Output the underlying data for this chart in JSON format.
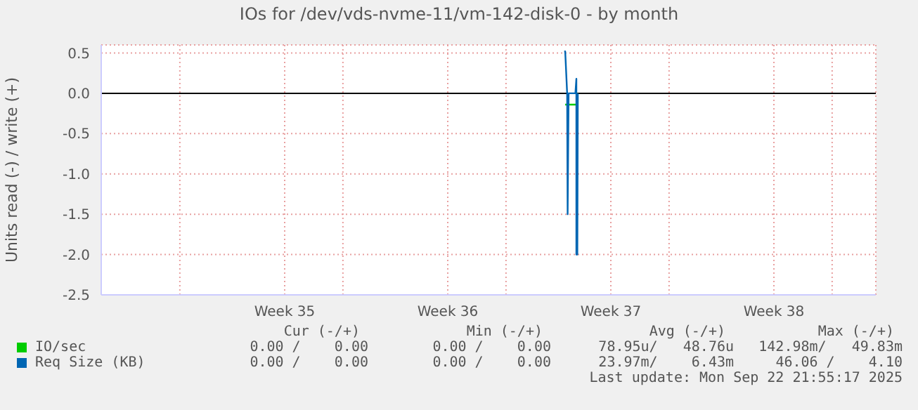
{
  "chart_data": {
    "type": "line",
    "title": "IOs for /dev/vds-nvme-11/vm-142-disk-0 - by month",
    "ylabel": "Units read (-) / write (+)",
    "xlim": [
      "2025-08-20T15:00",
      "2025-09-22T21:00"
    ],
    "xticks": [
      {
        "value": "2025-08-24",
        "label": null
      },
      {
        "value": "2025-08-28T12:00",
        "label": "Week 35"
      },
      {
        "value": "2025-08-31",
        "label": null
      },
      {
        "value": "2025-09-04T12:00",
        "label": "Week 36"
      },
      {
        "value": "2025-09-07",
        "label": null
      },
      {
        "value": "2025-09-11T12:00",
        "label": "Week 37"
      },
      {
        "value": "2025-09-14",
        "label": null
      },
      {
        "value": "2025-09-18T12:00",
        "label": "Week 38"
      },
      {
        "value": "2025-09-21",
        "label": null
      }
    ],
    "ylim": [
      -2.5,
      0.6
    ],
    "yticks": [
      {
        "value": -2.5,
        "label": "-2.5"
      },
      {
        "value": -2,
        "label": "-2.0"
      },
      {
        "value": -1.5,
        "label": "-1.5"
      },
      {
        "value": -1,
        "label": "-1.0"
      },
      {
        "value": -0.5,
        "label": "-0.5"
      },
      {
        "value": 0,
        "label": "0.0"
      },
      {
        "value": 0.5,
        "label": "0.5"
      }
    ],
    "grid": true,
    "legend": "bottom left",
    "marker": "none",
    "line_style": "solid",
    "ref_lines": [
      {
        "axis": "y",
        "value": 0,
        "color": "#000000"
      }
    ],
    "series": [
      {
        "name": "IO/sec",
        "color": "#00cc00",
        "x": [
          "2025-09-09T13:00",
          "2025-09-10T00:30",
          "2025-09-10T02:00"
        ],
        "values": [
          -0.14,
          -0.14,
          0.0
        ]
      },
      {
        "name": "Req Size (KB)",
        "color": "#0066b3",
        "x": [
          "2025-09-09T12:00",
          "2025-09-09T13:00",
          "2025-09-09T15:00",
          "2025-09-09T15:30",
          "2025-09-09T16:30",
          "2025-09-09T23:30",
          "2025-09-10T00:30",
          "2025-09-10T00:30",
          "2025-09-10T01:30",
          "2025-09-10T02:00"
        ],
        "values": [
          0.52,
          0.52,
          0.0,
          -1.5,
          0.0,
          0.0,
          0.18,
          -2.0,
          -2.0,
          0.0
        ]
      }
    ],
    "annotations": [
      "Cur (-/+)",
      "Min (-/+)",
      "Avg (-/+)",
      "Max (-/+)",
      "0.00 /    0.00",
      "0.00 /    0.00",
      "78.95u/   48.76u",
      "142.98m/   49.83m",
      "0.00 /    0.00",
      "0.00 /    0.00",
      "23.97m/    6.43m",
      "46.06 /    4.10",
      "Last update: Mon Sep 22 21:55:17 2025"
    ]
  }
}
